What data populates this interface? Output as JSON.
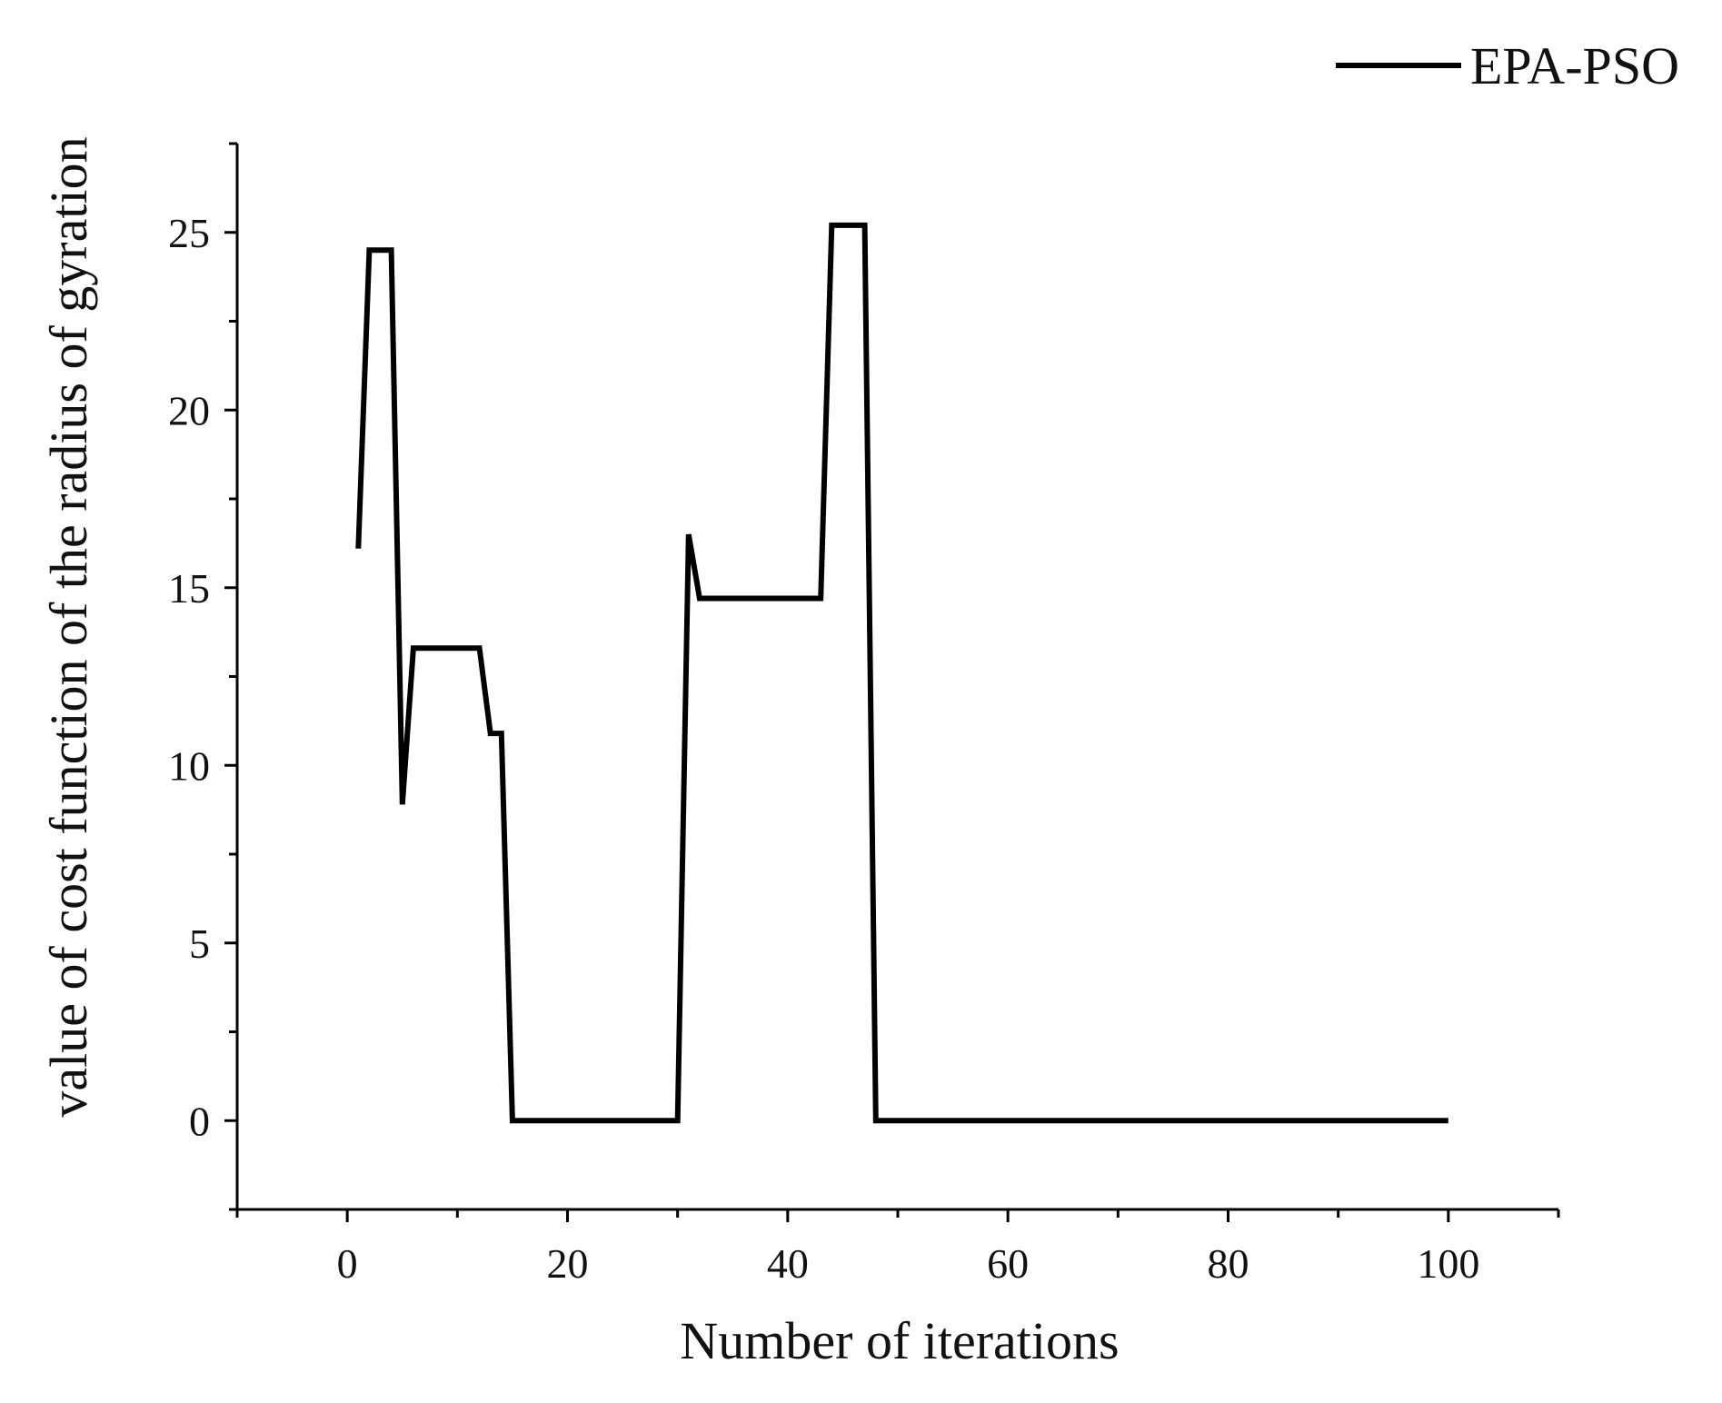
{
  "chart_data": {
    "type": "line",
    "title": "",
    "xlabel": "Number of iterations",
    "ylabel": "value of  cost function of the radius of gyration",
    "xlim": [
      -10,
      110
    ],
    "ylim": [
      -2.5,
      27.5
    ],
    "x_ticks": [
      0,
      20,
      40,
      60,
      80,
      100
    ],
    "x_tick_labels": [
      "0",
      "20",
      "40",
      "60",
      "80",
      "100"
    ],
    "x_minor_ticks": [
      -10,
      10,
      30,
      50,
      70,
      90,
      110
    ],
    "y_ticks": [
      0,
      5,
      10,
      15,
      20,
      25
    ],
    "y_tick_labels": [
      "0",
      "5",
      "10",
      "15",
      "20",
      "25"
    ],
    "y_minor_ticks": [
      -2.5,
      2.5,
      7.5,
      12.5,
      17.5,
      22.5,
      27.5
    ],
    "grid": false,
    "legend_position": "top-right",
    "line_color": "#000000",
    "series": [
      {
        "name": "EPA-PSO",
        "x": [
          1,
          2,
          3,
          4,
          5,
          6,
          7,
          8,
          9,
          10,
          11,
          12,
          13,
          14,
          15,
          16,
          17,
          18,
          19,
          20,
          21,
          22,
          23,
          24,
          25,
          26,
          27,
          28,
          29,
          30,
          31,
          32,
          33,
          34,
          35,
          36,
          37,
          38,
          39,
          40,
          41,
          42,
          43,
          44,
          45,
          46,
          47,
          48,
          49,
          50,
          51,
          52,
          53,
          54,
          55,
          56,
          57,
          58,
          59,
          60,
          61,
          62,
          63,
          64,
          65,
          66,
          67,
          68,
          69,
          70,
          71,
          72,
          73,
          74,
          75,
          76,
          77,
          78,
          79,
          80,
          81,
          82,
          83,
          84,
          85,
          86,
          87,
          88,
          89,
          90,
          91,
          92,
          93,
          94,
          95,
          96,
          97,
          98,
          99,
          100
        ],
        "y": [
          16.1,
          24.5,
          24.5,
          24.5,
          8.9,
          13.3,
          13.3,
          13.3,
          13.3,
          13.3,
          13.3,
          13.3,
          10.9,
          10.9,
          0,
          0,
          0,
          0,
          0,
          0,
          0,
          0,
          0,
          0,
          0,
          0,
          0,
          0,
          0,
          0,
          16.5,
          14.7,
          14.7,
          14.7,
          14.7,
          14.7,
          14.7,
          14.7,
          14.7,
          14.7,
          14.7,
          14.7,
          14.7,
          25.2,
          25.2,
          25.2,
          25.2,
          0,
          0,
          0,
          0,
          0,
          0,
          0,
          0,
          0,
          0,
          0,
          0,
          0,
          0,
          0,
          0,
          0,
          0,
          0,
          0,
          0,
          0,
          0,
          0,
          0,
          0,
          0,
          0,
          0,
          0,
          0,
          0,
          0,
          0,
          0,
          0,
          0,
          0,
          0,
          0,
          0,
          0,
          0,
          0,
          0,
          0,
          0,
          0,
          0,
          0,
          0,
          0,
          0
        ]
      }
    ]
  }
}
